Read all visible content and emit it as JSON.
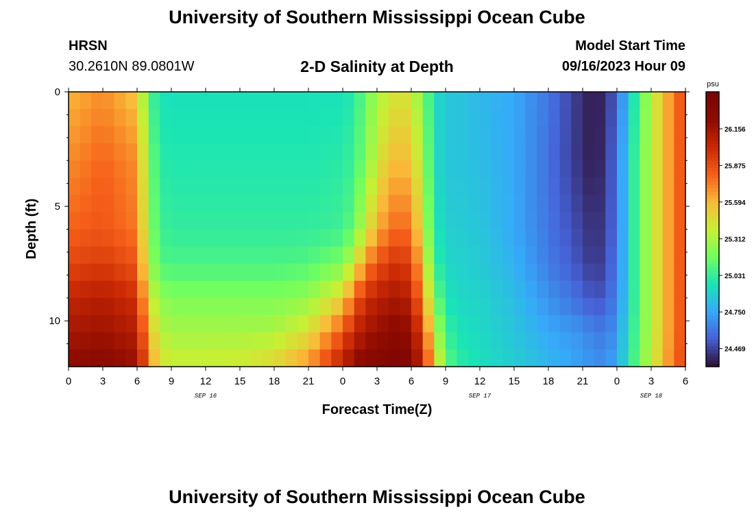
{
  "header": {
    "title": "University of Southern Mississippi Ocean Cube",
    "station": "HRSN",
    "coords": "30.2610N  89.0801W",
    "subtitle": "2-D Salinity at Depth",
    "model_start_label": "Model Start Time",
    "model_start_value": "09/16/2023 Hour 09"
  },
  "footer": {
    "title": "University of Southern Mississippi Ocean Cube"
  },
  "chart_data": {
    "type": "heatmap",
    "xlabel": "Forecast Time(Z)",
    "ylabel": "Depth (ft)",
    "xlim": [
      0,
      54
    ],
    "ylim": [
      12,
      0
    ],
    "x_ticks": [
      0,
      3,
      6,
      9,
      12,
      15,
      18,
      21,
      24,
      27,
      30,
      33,
      36,
      39,
      42,
      45,
      48,
      51,
      54
    ],
    "x_tick_labels": [
      "0",
      "3",
      "6",
      "9",
      "12",
      "15",
      "18",
      "21",
      "0",
      "3",
      "6",
      "9",
      "12",
      "15",
      "18",
      "21",
      "0",
      "3",
      "6"
    ],
    "y_ticks": [
      0,
      5,
      10
    ],
    "y_tick_labels": [
      "0",
      "5",
      "10"
    ],
    "date_labels": [
      {
        "x": 12,
        "text": "SEP 16"
      },
      {
        "x": 36,
        "text": "SEP 17"
      },
      {
        "x": 51,
        "text": "SEP 18"
      }
    ],
    "colorbar": {
      "unit": "psu",
      "min": 24.33,
      "max": 26.44,
      "tick_values": [
        26.156,
        25.875,
        25.594,
        25.312,
        25.031,
        24.75,
        24.469
      ],
      "tick_labels": [
        "26.156",
        "25.875",
        "25.594",
        "25.312",
        "25.031",
        "24.750",
        "24.469"
      ]
    },
    "time_hours": [
      0,
      3,
      6,
      7,
      8,
      9,
      12,
      15,
      18,
      21,
      24,
      25,
      26,
      27,
      28,
      29,
      30,
      31,
      32,
      33,
      34,
      36,
      39,
      42,
      45,
      46,
      47,
      48,
      49,
      50,
      51,
      52,
      53,
      54
    ],
    "depth_ft": [
      0,
      3,
      6,
      7.5,
      9,
      10.5,
      12
    ],
    "salinity": [
      [
        25.6,
        25.7,
        25.55,
        25.1,
        24.95,
        24.95,
        24.95,
        24.95,
        24.95,
        24.95,
        24.95,
        25.0,
        25.15,
        25.3,
        25.4,
        25.45,
        25.4,
        25.2,
        24.95,
        24.85,
        24.85,
        24.8,
        24.75,
        24.6,
        24.4,
        24.35,
        24.4,
        24.55,
        24.85,
        25.1,
        25.35,
        25.55,
        25.75,
        25.9
      ],
      [
        25.7,
        25.8,
        25.7,
        25.2,
        25.0,
        24.98,
        24.98,
        24.98,
        24.98,
        24.98,
        25.0,
        25.05,
        25.2,
        25.4,
        25.55,
        25.6,
        25.55,
        25.3,
        24.95,
        24.85,
        24.85,
        24.82,
        24.75,
        24.58,
        24.4,
        24.35,
        24.42,
        24.6,
        24.9,
        25.15,
        25.35,
        25.55,
        25.75,
        25.9
      ],
      [
        25.8,
        25.85,
        25.75,
        25.25,
        25.05,
        25.02,
        25.02,
        25.02,
        25.02,
        25.02,
        25.05,
        25.15,
        25.4,
        25.6,
        25.75,
        25.8,
        25.75,
        25.4,
        25.0,
        24.88,
        24.88,
        24.85,
        24.75,
        24.6,
        24.45,
        24.4,
        24.45,
        24.6,
        24.9,
        25.15,
        25.35,
        25.55,
        25.75,
        25.9
      ],
      [
        25.9,
        25.95,
        25.85,
        25.3,
        25.1,
        25.08,
        25.08,
        25.08,
        25.08,
        25.1,
        25.2,
        25.4,
        25.7,
        25.85,
        25.95,
        26.0,
        25.9,
        25.55,
        25.05,
        24.92,
        24.9,
        24.87,
        24.78,
        24.62,
        24.48,
        24.42,
        24.47,
        24.62,
        24.9,
        25.15,
        25.35,
        25.55,
        25.75,
        25.9
      ],
      [
        26.05,
        26.1,
        26.0,
        25.45,
        25.25,
        25.2,
        25.2,
        25.2,
        25.2,
        25.25,
        25.5,
        25.8,
        26.0,
        26.08,
        26.12,
        26.15,
        26.05,
        25.7,
        25.2,
        24.97,
        24.92,
        24.9,
        24.82,
        24.68,
        24.55,
        24.5,
        24.52,
        24.65,
        24.9,
        25.15,
        25.35,
        25.55,
        25.75,
        25.9
      ],
      [
        26.15,
        26.18,
        26.1,
        25.6,
        25.35,
        25.3,
        25.3,
        25.3,
        25.32,
        25.45,
        25.85,
        26.05,
        26.15,
        26.2,
        26.25,
        26.28,
        26.2,
        25.9,
        25.4,
        25.05,
        24.97,
        24.92,
        24.85,
        24.75,
        24.68,
        24.62,
        24.62,
        24.7,
        24.95,
        25.15,
        25.35,
        25.55,
        25.75,
        25.9
      ],
      [
        26.25,
        26.28,
        26.2,
        25.75,
        25.45,
        25.4,
        25.4,
        25.42,
        25.5,
        25.7,
        26.1,
        26.25,
        26.3,
        26.35,
        26.38,
        26.4,
        26.35,
        26.0,
        25.6,
        25.15,
        25.02,
        24.95,
        24.88,
        24.8,
        24.72,
        24.68,
        24.68,
        24.75,
        24.98,
        25.18,
        25.38,
        25.58,
        25.78,
        25.92
      ]
    ]
  }
}
